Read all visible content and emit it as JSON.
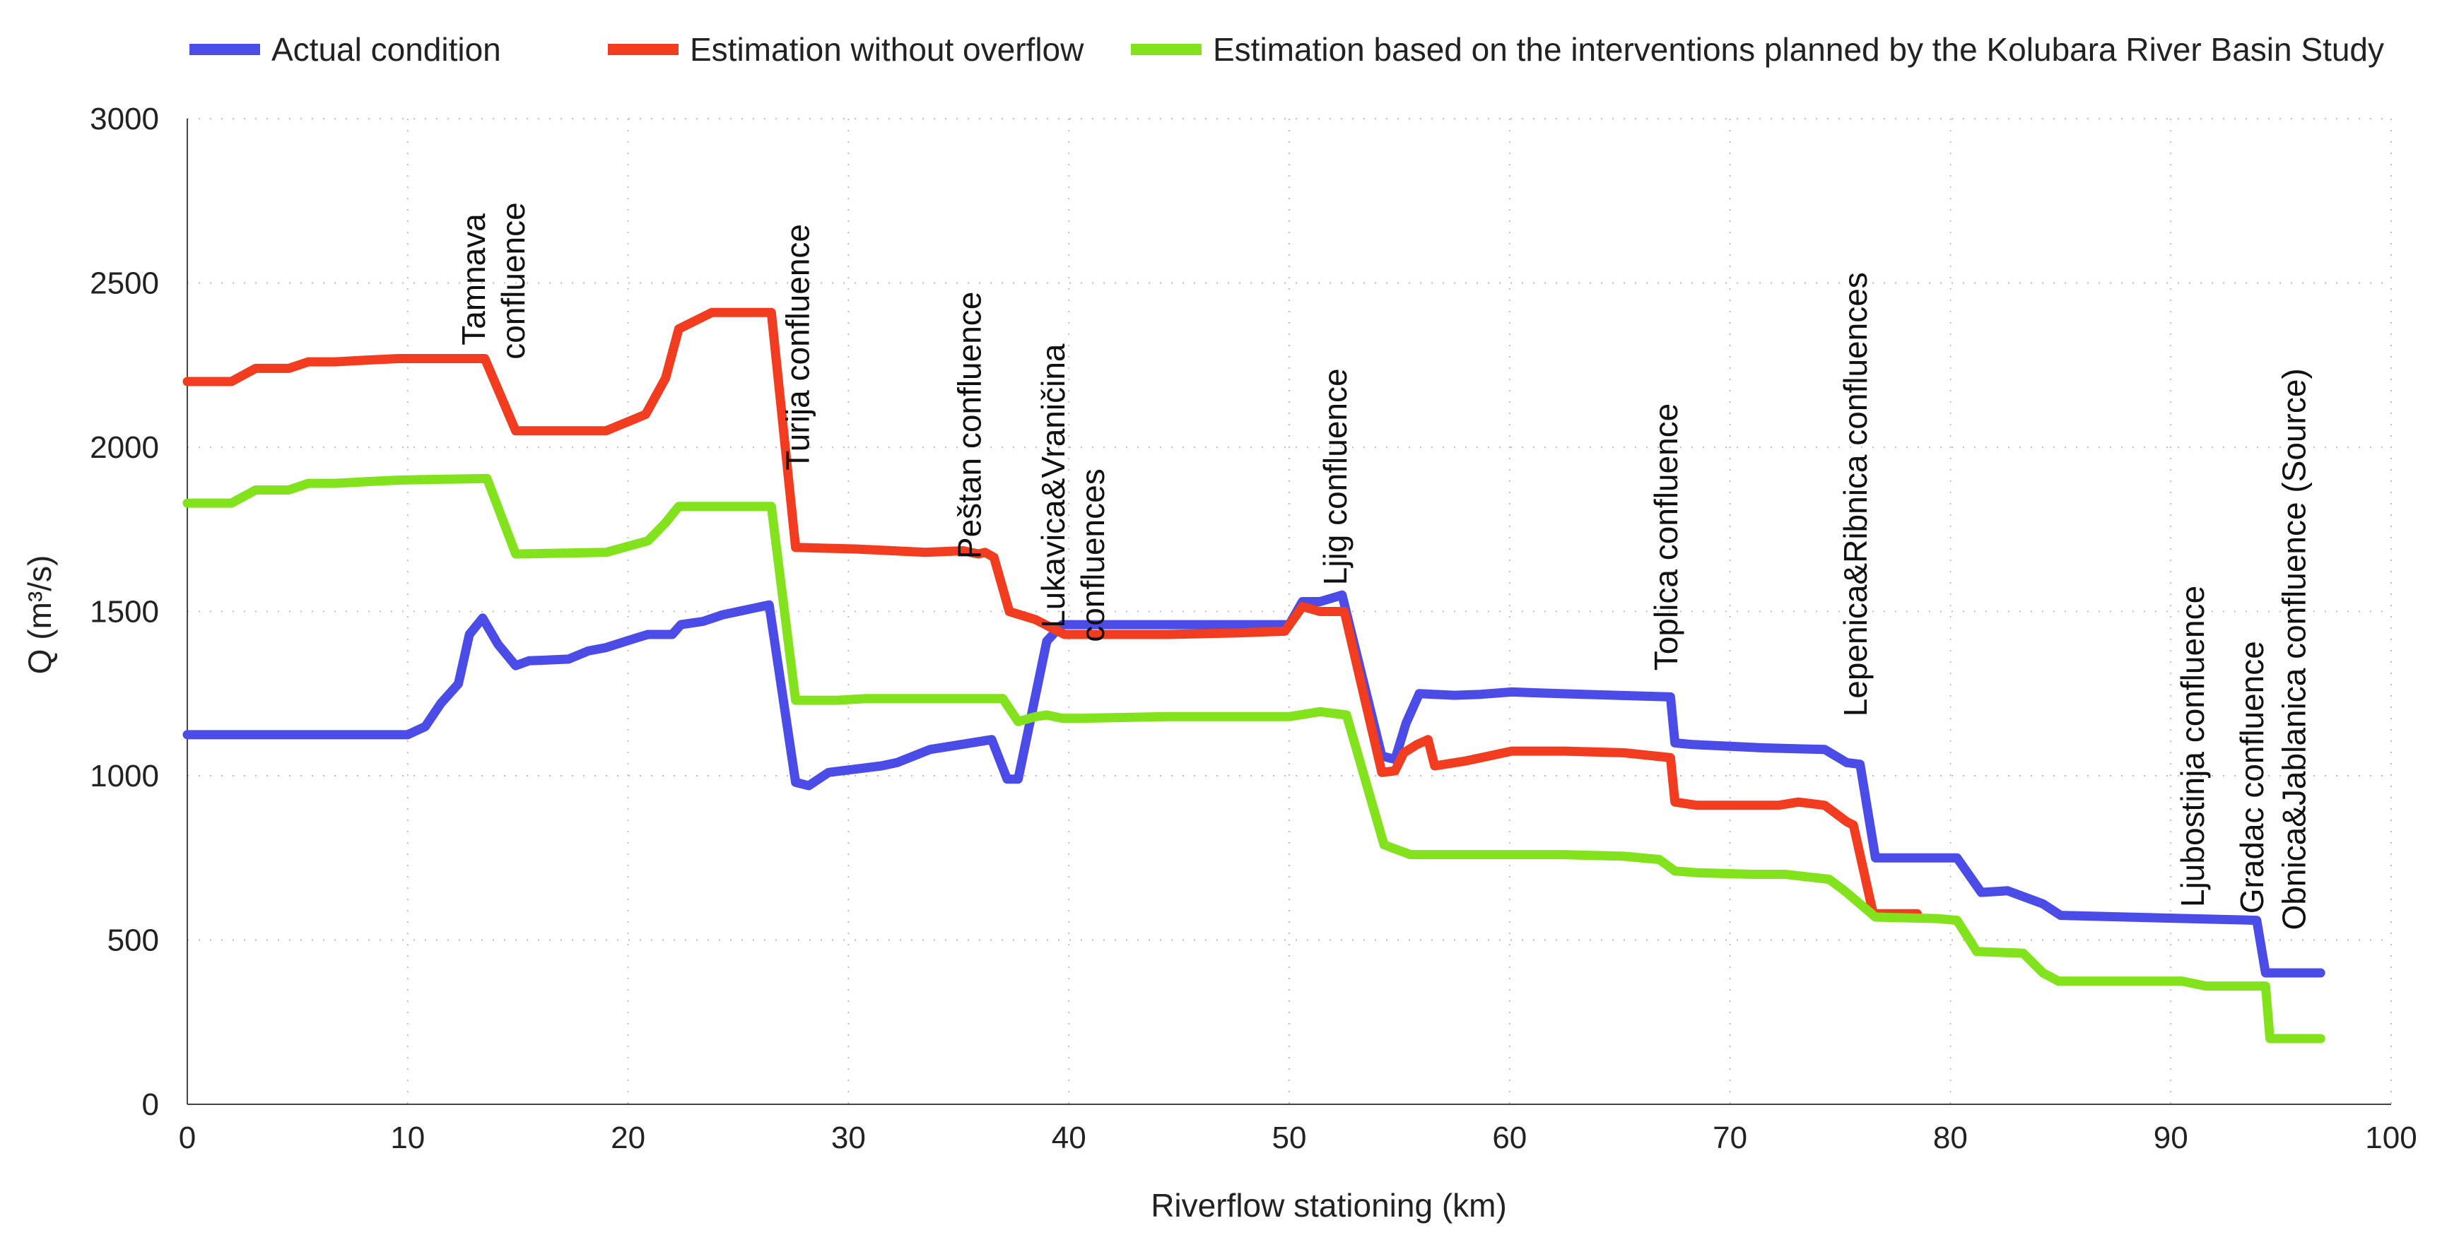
{
  "chart_data": {
    "type": "line",
    "title": "",
    "xlabel": "Riverflow stationing (km)",
    "ylabel": "Q (m³/s)",
    "xlim": [
      0,
      100
    ],
    "ylim": [
      0,
      3000
    ],
    "xticks": [
      0,
      10,
      20,
      30,
      40,
      50,
      60,
      70,
      80,
      90,
      100
    ],
    "yticks": [
      0,
      500,
      1000,
      1500,
      2000,
      2500,
      3000
    ],
    "grid": true,
    "legend_position": "top",
    "series": [
      {
        "name": "Actual condition",
        "color": "#4b4be8",
        "points": [
          [
            0,
            1125
          ],
          [
            10,
            1125
          ],
          [
            10.8,
            1150
          ],
          [
            11.5,
            1220
          ],
          [
            12.3,
            1280
          ],
          [
            12.8,
            1430
          ],
          [
            13.4,
            1480
          ],
          [
            14.1,
            1400
          ],
          [
            14.9,
            1335
          ],
          [
            15.5,
            1350
          ],
          [
            17.3,
            1355
          ],
          [
            18.2,
            1380
          ],
          [
            19.0,
            1390
          ],
          [
            20.4,
            1420
          ],
          [
            20.9,
            1430
          ],
          [
            22.0,
            1430
          ],
          [
            22.4,
            1460
          ],
          [
            23.4,
            1470
          ],
          [
            24.3,
            1490
          ],
          [
            26.4,
            1520
          ],
          [
            27.6,
            980
          ],
          [
            28.2,
            970
          ],
          [
            29.1,
            1010
          ],
          [
            31.5,
            1030
          ],
          [
            32.2,
            1040
          ],
          [
            33.7,
            1080
          ],
          [
            36.5,
            1110
          ],
          [
            37.2,
            990
          ],
          [
            37.7,
            990
          ],
          [
            39.0,
            1410
          ],
          [
            39.7,
            1460
          ],
          [
            44.8,
            1460
          ],
          [
            50.0,
            1460
          ],
          [
            50.6,
            1530
          ],
          [
            51.4,
            1530
          ],
          [
            52.4,
            1550
          ],
          [
            54.2,
            1060
          ],
          [
            54.8,
            1050
          ],
          [
            55.3,
            1160
          ],
          [
            55.9,
            1250
          ],
          [
            57.5,
            1245
          ],
          [
            58.7,
            1248
          ],
          [
            60.1,
            1255
          ],
          [
            62.3,
            1250
          ],
          [
            67.3,
            1240
          ],
          [
            67.5,
            1100
          ],
          [
            68.3,
            1095
          ],
          [
            71.5,
            1085
          ],
          [
            74.3,
            1080
          ],
          [
            75.3,
            1040
          ],
          [
            75.9,
            1035
          ],
          [
            76.6,
            750
          ],
          [
            80.3,
            750
          ],
          [
            81.4,
            645
          ],
          [
            82.6,
            650
          ],
          [
            84.2,
            610
          ],
          [
            85.0,
            575
          ],
          [
            93.9,
            560
          ],
          [
            94.3,
            400
          ],
          [
            96.8,
            400
          ]
        ]
      },
      {
        "name": "Estimation without overflow",
        "color": "#f23c1f",
        "points": [
          [
            0,
            2200
          ],
          [
            2.0,
            2200
          ],
          [
            3.1,
            2240
          ],
          [
            4.6,
            2240
          ],
          [
            5.5,
            2260
          ],
          [
            6.7,
            2260
          ],
          [
            8.1,
            2265
          ],
          [
            9.6,
            2270
          ],
          [
            12.6,
            2270
          ],
          [
            13.5,
            2270
          ],
          [
            14.9,
            2050
          ],
          [
            19.0,
            2050
          ],
          [
            20.8,
            2100
          ],
          [
            21.7,
            2210
          ],
          [
            22.3,
            2360
          ],
          [
            23.8,
            2410
          ],
          [
            26.5,
            2410
          ],
          [
            27.6,
            1695
          ],
          [
            30.4,
            1690
          ],
          [
            33.5,
            1680
          ],
          [
            35.2,
            1685
          ],
          [
            35.9,
            1675
          ],
          [
            36.2,
            1680
          ],
          [
            36.6,
            1665
          ],
          [
            37.3,
            1500
          ],
          [
            38.5,
            1475
          ],
          [
            39.8,
            1430
          ],
          [
            40.5,
            1430
          ],
          [
            44.5,
            1430
          ],
          [
            47.7,
            1435
          ],
          [
            49.8,
            1440
          ],
          [
            50.6,
            1515
          ],
          [
            51.4,
            1500
          ],
          [
            52.5,
            1500
          ],
          [
            54.2,
            1010
          ],
          [
            54.8,
            1015
          ],
          [
            55.2,
            1070
          ],
          [
            55.8,
            1095
          ],
          [
            56.3,
            1110
          ],
          [
            56.6,
            1030
          ],
          [
            58.0,
            1045
          ],
          [
            60.1,
            1075
          ],
          [
            62.5,
            1075
          ],
          [
            65.2,
            1070
          ],
          [
            67.3,
            1055
          ],
          [
            67.5,
            920
          ],
          [
            68.5,
            910
          ],
          [
            71.3,
            910
          ],
          [
            72.2,
            910
          ],
          [
            73.1,
            920
          ],
          [
            74.3,
            910
          ],
          [
            75.3,
            860
          ],
          [
            75.6,
            850
          ],
          [
            76.5,
            580
          ],
          [
            78.5,
            580
          ]
        ]
      },
      {
        "name": "Estimation based on the interventions planned by the Kolubara River Basin Study",
        "color": "#82e21b",
        "points": [
          [
            0,
            1830
          ],
          [
            2.0,
            1830
          ],
          [
            3.1,
            1870
          ],
          [
            4.6,
            1870
          ],
          [
            5.5,
            1890
          ],
          [
            6.7,
            1890
          ],
          [
            8.1,
            1895
          ],
          [
            9.6,
            1900
          ],
          [
            13.6,
            1905
          ],
          [
            14.9,
            1675
          ],
          [
            19.0,
            1680
          ],
          [
            20.9,
            1715
          ],
          [
            21.7,
            1770
          ],
          [
            22.3,
            1820
          ],
          [
            26.5,
            1820
          ],
          [
            27.6,
            1230
          ],
          [
            29.5,
            1230
          ],
          [
            30.8,
            1235
          ],
          [
            33.5,
            1235
          ],
          [
            37.0,
            1235
          ],
          [
            37.7,
            1165
          ],
          [
            38.5,
            1180
          ],
          [
            39.0,
            1185
          ],
          [
            39.7,
            1175
          ],
          [
            40.6,
            1175
          ],
          [
            44.5,
            1180
          ],
          [
            47.7,
            1180
          ],
          [
            50.0,
            1180
          ],
          [
            51.4,
            1195
          ],
          [
            52.6,
            1185
          ],
          [
            54.3,
            790
          ],
          [
            55.5,
            760
          ],
          [
            60.2,
            760
          ],
          [
            62.4,
            760
          ],
          [
            65.2,
            755
          ],
          [
            66.8,
            745
          ],
          [
            67.5,
            710
          ],
          [
            68.5,
            705
          ],
          [
            71.0,
            700
          ],
          [
            72.5,
            700
          ],
          [
            74.5,
            685
          ],
          [
            75.2,
            650
          ],
          [
            76.6,
            570
          ],
          [
            79.5,
            565
          ],
          [
            80.3,
            560
          ],
          [
            81.2,
            465
          ],
          [
            83.3,
            460
          ],
          [
            84.2,
            400
          ],
          [
            84.9,
            375
          ],
          [
            90.5,
            375
          ],
          [
            91.6,
            360
          ],
          [
            94.3,
            360
          ],
          [
            94.5,
            200
          ],
          [
            96.8,
            200
          ]
        ]
      }
    ],
    "annotations": [
      {
        "lines": [
          "Tamnava",
          "confluence"
        ],
        "x": 13.5,
        "y": 2310
      },
      {
        "lines": [
          "Turija confluence"
        ],
        "x": 28.2,
        "y": 1930
      },
      {
        "lines": [
          "Peštan confluence"
        ],
        "x": 36.0,
        "y": 1660
      },
      {
        "lines": [
          "Lukavica&Vraničina",
          "confluences"
        ],
        "x": 39.8,
        "y": 1450
      },
      {
        "lines": [
          "Ljig confluence"
        ],
        "x": 52.6,
        "y": 1580
      },
      {
        "lines": [
          "Toplica confluence"
        ],
        "x": 67.6,
        "y": 1320
      },
      {
        "lines": [
          "Lepenica&Ribnica confluences"
        ],
        "x": 76.2,
        "y": 1180
      },
      {
        "lines": [
          "Ljubostinja confluence"
        ],
        "x": 91.5,
        "y": 600
      },
      {
        "lines": [
          "Gradac confluence"
        ],
        "x": 94.2,
        "y": 580
      },
      {
        "lines": [
          "Obnica&Jablanica confluence (Source)"
        ],
        "x": 96.1,
        "y": 530
      }
    ]
  }
}
